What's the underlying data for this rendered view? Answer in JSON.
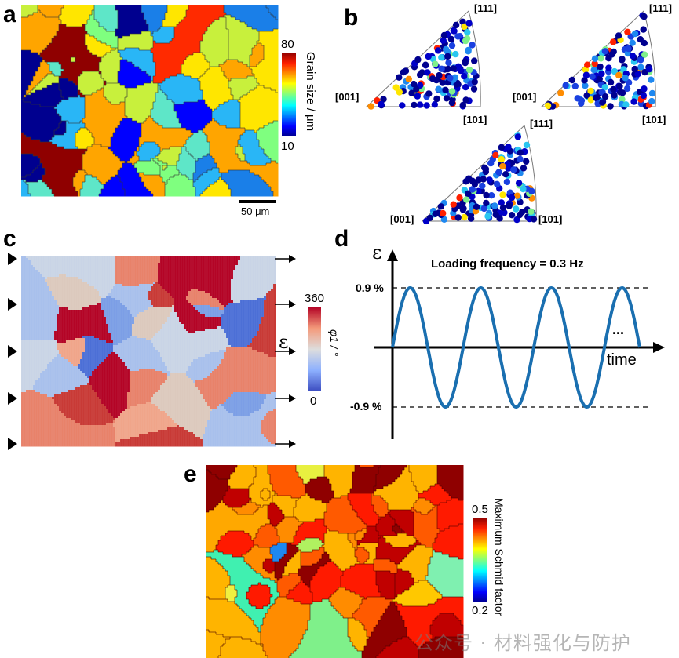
{
  "panels": {
    "a": {
      "label": "a",
      "colorbar": {
        "max": "80",
        "min": "10",
        "title": "Grain size / μm",
        "colormap": "jet"
      },
      "scalebar": "50 μm"
    },
    "b": {
      "label": "b",
      "ipf_triangles": [
        {
          "corner_001": "[001]",
          "corner_101": "[101]",
          "corner_111": "[111]"
        },
        {
          "corner_001": "[001]",
          "corner_101": "[101]",
          "corner_111": "[111]"
        },
        {
          "corner_001": "[001]",
          "corner_101": "[101]",
          "corner_111": "[111]"
        }
      ]
    },
    "c": {
      "label": "c",
      "colorbar": {
        "max": "360",
        "min": "0",
        "title": "φ1 / °",
        "colormap": "coolwarm"
      },
      "strain_label": "ε",
      "left_arrow_count": 5,
      "right_arrow_count": 5
    },
    "d": {
      "label": "d"
    },
    "e": {
      "label": "e",
      "colorbar": {
        "max": "0.5",
        "min": "0.2",
        "title": "Maximum Schmid factor",
        "colormap": "jet"
      }
    }
  },
  "chart_data": {
    "type": "line",
    "title": "Loading frequency = 0.3 Hz",
    "ylabel": "ε",
    "xlabel": "time",
    "y_tick_labels": [
      "0.9 %",
      "-0.9 %"
    ],
    "amplitude_percent": 0.9,
    "frequency_hz": 0.3,
    "cycles_shown": 3.5,
    "continuation": "...",
    "series": [
      {
        "name": "strain",
        "color": "#1a6fb0",
        "waveform": "sine",
        "amplitude": 0.9,
        "cycles": 3.5
      }
    ],
    "reference_lines": [
      0.9,
      -0.9
    ]
  },
  "colors": {
    "line": "#1a6fb0",
    "grain_a": [
      "#00008f",
      "#0000ff",
      "#1a7fe8",
      "#29b6f6",
      "#5ee6c8",
      "#7fff7f",
      "#c8f03c",
      "#ffe600",
      "#ffa500",
      "#ff2a00",
      "#8f0000"
    ],
    "grain_e_dominant": [
      "#8f0000",
      "#c00000",
      "#ff1a00",
      "#ff5a00",
      "#ff8c00",
      "#ffb400"
    ]
  },
  "watermark": "公众号 · 材料强化与防护"
}
